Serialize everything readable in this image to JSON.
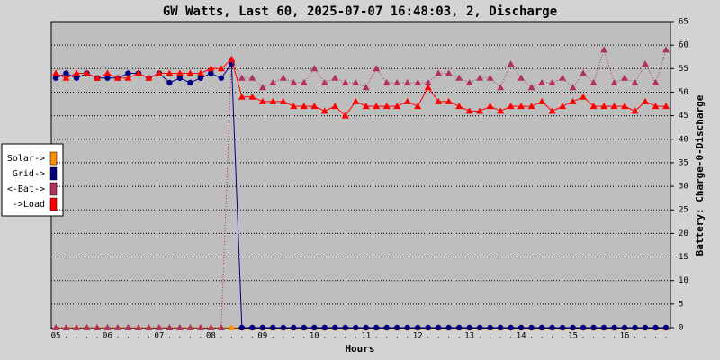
{
  "chart_data": {
    "type": "line",
    "title": "GW Watts, Last 60, 2025-07-07 16:48:03, 2, Discharge",
    "x_label": "Hours",
    "y_label": "Battery: Charge-0-Discharge",
    "y_axis_side": "right",
    "grid": true,
    "legend_position": "left",
    "categories": [
      "05",
      ".",
      ".",
      ".",
      ".",
      "06",
      ".",
      ".",
      ".",
      ".",
      "07",
      ".",
      ".",
      ".",
      ".",
      "08",
      ".",
      ".",
      ".",
      ".",
      "09",
      ".",
      ".",
      ".",
      ".",
      "10",
      ".",
      ".",
      ".",
      ".",
      "11",
      ".",
      ".",
      ".",
      ".",
      "12",
      ".",
      ".",
      ".",
      ".",
      "13",
      ".",
      ".",
      ".",
      ".",
      "14",
      ".",
      ".",
      ".",
      ".",
      "15",
      ".",
      ".",
      ".",
      ".",
      "16",
      ".",
      ".",
      ".",
      "."
    ],
    "ylim": [
      0,
      65
    ],
    "yticks": [
      0,
      5,
      10,
      15,
      20,
      25,
      30,
      35,
      40,
      45,
      50,
      55,
      60,
      65
    ],
    "series": [
      {
        "name": "Solar->",
        "color": "#ff8c00",
        "marker": "triangle",
        "dashed": false,
        "values": [
          0,
          0,
          0,
          0,
          0,
          0,
          0,
          0,
          0,
          0,
          0,
          0,
          0,
          0,
          0,
          0,
          0,
          0,
          0,
          0,
          0,
          0,
          0,
          0,
          0,
          0,
          0,
          0,
          0,
          0,
          0,
          0,
          0,
          0,
          0,
          0,
          0,
          0,
          0,
          0,
          0,
          0,
          0,
          0,
          0,
          0,
          0,
          0,
          0,
          0,
          0,
          0,
          0,
          0,
          0,
          0,
          0,
          0,
          0,
          0
        ]
      },
      {
        "name": "<-Bat->",
        "color": "#b03060",
        "marker": "triangle",
        "dashed": true,
        "values": [
          0,
          0,
          0,
          0,
          0,
          0,
          0,
          0,
          0,
          0,
          0,
          0,
          0,
          0,
          0,
          0,
          0,
          57,
          53,
          53,
          51,
          52,
          53,
          52,
          52,
          55,
          52,
          53,
          52,
          52,
          51,
          55,
          52,
          52,
          52,
          52,
          52,
          54,
          54,
          53,
          52,
          53,
          53,
          51,
          56,
          53,
          51,
          52,
          52,
          53,
          51,
          54,
          52,
          59,
          52,
          53,
          52,
          56,
          52,
          59
        ]
      },
      {
        "name": "Grid->",
        "color": "#000080",
        "marker": "circle",
        "dashed": false,
        "values": [
          53,
          54,
          53,
          54,
          53,
          53,
          53,
          54,
          54,
          53,
          54,
          52,
          53,
          52,
          53,
          54,
          53,
          56,
          0,
          0,
          0,
          0,
          0,
          0,
          0,
          0,
          0,
          0,
          0,
          0,
          0,
          0,
          0,
          0,
          0,
          0,
          0,
          0,
          0,
          0,
          0,
          0,
          0,
          0,
          0,
          0,
          0,
          0,
          0,
          0,
          0,
          0,
          0,
          0,
          0,
          0,
          0,
          0,
          0,
          0
        ]
      },
      {
        "name": "->Load",
        "color": "#ff0000",
        "marker": "triangle",
        "dashed": false,
        "values": [
          54,
          53,
          54,
          54,
          53,
          54,
          53,
          53,
          54,
          53,
          54,
          54,
          54,
          54,
          54,
          55,
          55,
          57,
          49,
          49,
          48,
          48,
          48,
          47,
          47,
          47,
          46,
          47,
          45,
          48,
          47,
          47,
          47,
          47,
          48,
          47,
          51,
          48,
          48,
          47,
          46,
          46,
          47,
          46,
          47,
          47,
          47,
          48,
          46,
          47,
          48,
          49,
          47,
          47,
          47,
          47,
          46,
          48,
          47,
          47
        ]
      }
    ],
    "legend_order": [
      0,
      2,
      1,
      3
    ]
  }
}
